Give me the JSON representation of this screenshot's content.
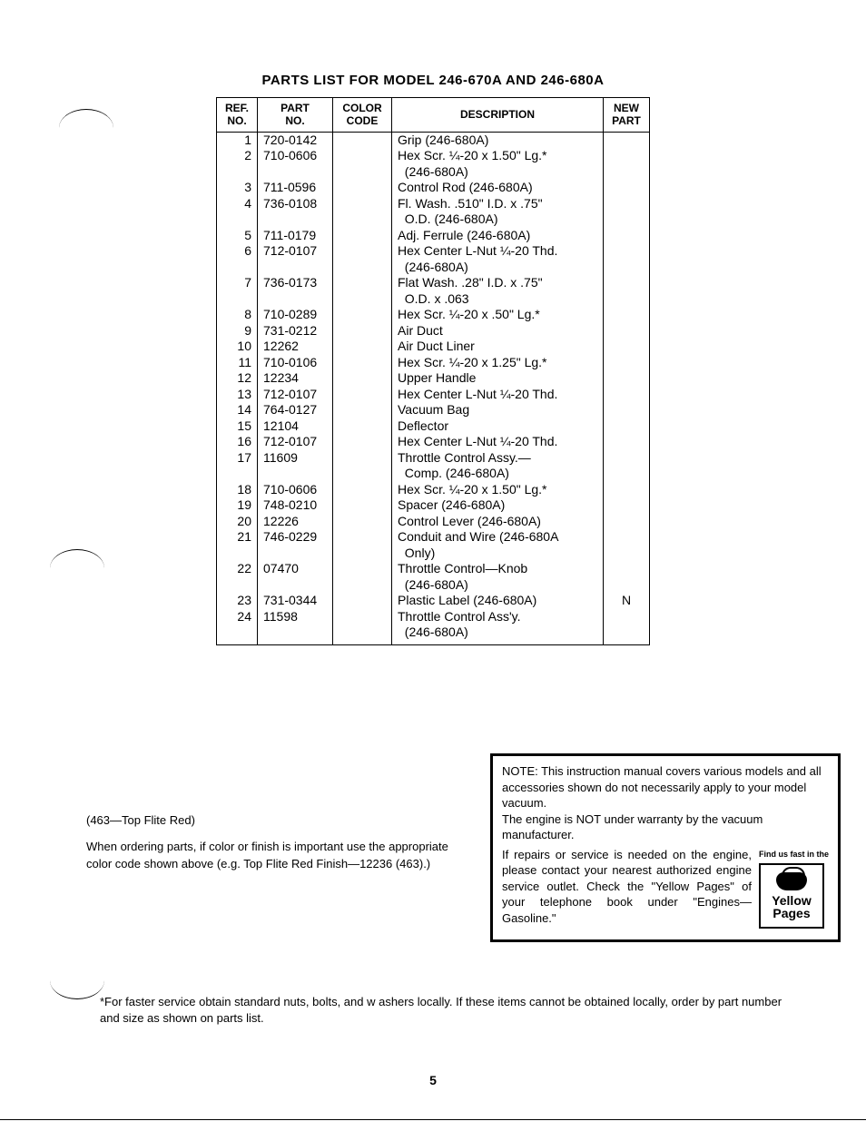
{
  "title": "PARTS LIST FOR MODEL 246-670A AND 246-680A",
  "columns": [
    "REF.\nNO.",
    "PART\nNO.",
    "COLOR\nCODE",
    "DESCRIPTION",
    "NEW\nPART"
  ],
  "rows": [
    {
      "ref": "1",
      "part": "720-0142",
      "color": "",
      "desc": "Grip (246-680A)",
      "new": ""
    },
    {
      "ref": "2",
      "part": "710-0606",
      "color": "",
      "desc": "Hex Scr. ¼-20 x 1.50\" Lg.*\n  (246-680A)",
      "new": ""
    },
    {
      "ref": "3",
      "part": "711-0596",
      "color": "",
      "desc": "Control Rod (246-680A)",
      "new": ""
    },
    {
      "ref": "4",
      "part": "736-0108",
      "color": "",
      "desc": "Fl. Wash. .510\" I.D. x .75\"\n  O.D. (246-680A)",
      "new": ""
    },
    {
      "ref": "5",
      "part": "711-0179",
      "color": "",
      "desc": "Adj. Ferrule (246-680A)",
      "new": ""
    },
    {
      "ref": "6",
      "part": "712-0107",
      "color": "",
      "desc": "Hex Center L-Nut ¼-20 Thd.\n  (246-680A)",
      "new": ""
    },
    {
      "ref": "7",
      "part": "736-0173",
      "color": "",
      "desc": "Flat Wash. .28\" I.D. x .75\"\n  O.D. x .063",
      "new": ""
    },
    {
      "ref": "8",
      "part": "710-0289",
      "color": "",
      "desc": "Hex Scr. ¼-20 x .50\" Lg.*",
      "new": ""
    },
    {
      "ref": "9",
      "part": "731-0212",
      "color": "",
      "desc": "Air Duct",
      "new": ""
    },
    {
      "ref": "10",
      "part": "12262",
      "color": "",
      "desc": "Air Duct Liner",
      "new": ""
    },
    {
      "ref": "11",
      "part": "710-0106",
      "color": "",
      "desc": "Hex Scr. ¼-20 x 1.25\" Lg.*",
      "new": ""
    },
    {
      "ref": "12",
      "part": "12234",
      "color": "",
      "desc": "Upper Handle",
      "new": ""
    },
    {
      "ref": "13",
      "part": "712-0107",
      "color": "",
      "desc": "Hex Center L-Nut ¼-20 Thd.",
      "new": ""
    },
    {
      "ref": "14",
      "part": "764-0127",
      "color": "",
      "desc": "Vacuum Bag",
      "new": ""
    },
    {
      "ref": "15",
      "part": "12104",
      "color": "",
      "desc": "Deflector",
      "new": ""
    },
    {
      "ref": "16",
      "part": "712-0107",
      "color": "",
      "desc": "Hex Center L-Nut ¼-20 Thd.",
      "new": ""
    },
    {
      "ref": "17",
      "part": "11609",
      "color": "",
      "desc": "Throttle Control Assy.—\n  Comp. (246-680A)",
      "new": ""
    },
    {
      "ref": "18",
      "part": "710-0606",
      "color": "",
      "desc": "Hex Scr. ¼-20 x 1.50\" Lg.*",
      "new": ""
    },
    {
      "ref": "19",
      "part": "748-0210",
      "color": "",
      "desc": "Spacer (246-680A)",
      "new": ""
    },
    {
      "ref": "20",
      "part": "12226",
      "color": "",
      "desc": "Control Lever (246-680A)",
      "new": ""
    },
    {
      "ref": "21",
      "part": "746-0229",
      "color": "",
      "desc": "Conduit and Wire (246-680A\n  Only)",
      "new": ""
    },
    {
      "ref": "22",
      "part": "07470",
      "color": "",
      "desc": "Throttle Control—Knob\n  (246-680A)",
      "new": ""
    },
    {
      "ref": "23",
      "part": "731-0344",
      "color": "",
      "desc": "Plastic Label (246-680A)",
      "new": "N"
    },
    {
      "ref": "24",
      "part": "11598",
      "color": "",
      "desc": "Throttle Control Ass'y.\n  (246-680A)",
      "new": ""
    }
  ],
  "left_note_line1": "(463—Top Flite Red)",
  "left_note_body": "When ordering parts, if color or finish is important use the appropriate color code shown above (e.g. Top Flite Red Finish—12236 (463).)",
  "note_top": "NOTE: This instruction manual covers various models and all accessories shown do not necessarily apply to your model vacuum.\nThe engine is NOT under warranty by the vacuum manufacturer.",
  "note_bottom": "If repairs or service is needed on the engine, please contact your nearest authorized engine service outlet. Check the \"Yellow Pages\" of your telephone book under \"Engines—Gasoline.\"",
  "yp_tag": "Find us fast in the",
  "yp_line1": "Yellow",
  "yp_line2": "Pages",
  "footnote": "*For faster service obtain standard nuts, bolts, and w ashers locally. If these items cannot be obtained locally, order by part number and size as shown on parts list.",
  "page_number": "5"
}
